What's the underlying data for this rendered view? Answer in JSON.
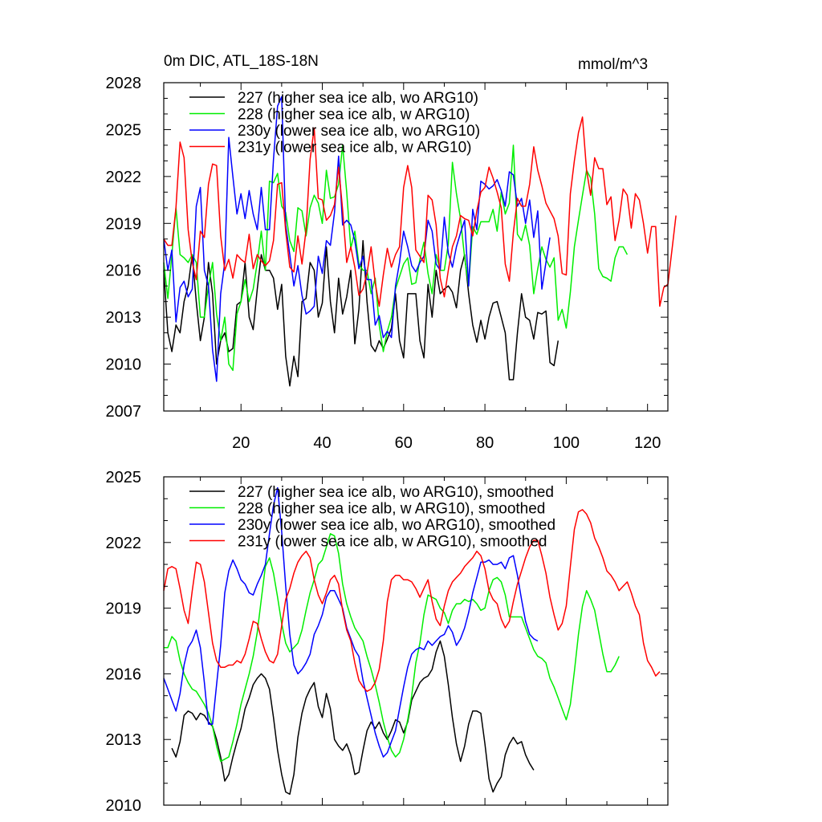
{
  "header": {
    "title": "0m DIC, ATL_18S-18N",
    "units": "mmol/m^3"
  },
  "chart_data": [
    {
      "type": "line",
      "title": "0m DIC, ATL_18S-18N",
      "units": "mmol/m^3",
      "xlim": [
        1,
        125
      ],
      "ylim": [
        2007,
        2028
      ],
      "xticks": [
        20,
        40,
        60,
        80,
        100,
        120
      ],
      "yticks": [
        2007,
        2010,
        2013,
        2016,
        2019,
        2022,
        2025,
        2028
      ],
      "legend_position": "top-left",
      "series": [
        {
          "name": "227 (higher sea ice alb, wo ARG10)",
          "color": "#000000",
          "start": 1,
          "values": [
            2016,
            2012,
            2010.8,
            2012.5,
            2012,
            2014,
            2015,
            2017,
            2014,
            2011.5,
            2013,
            2016.5,
            2014.5,
            2010,
            2011.5,
            2012,
            2010.8,
            2011,
            2013.8,
            2014,
            2016.5,
            2013,
            2012.2,
            2014.8,
            2017,
            2016,
            2016,
            2015.5,
            2013.5,
            2015.1,
            2010.5,
            2008.6,
            2010.5,
            2009.2,
            2014,
            2014.2,
            2016.5,
            2016,
            2013,
            2013.9,
            2017.5,
            2014,
            2012,
            2015.5,
            2013.2,
            2014.3,
            2016,
            2011.3,
            2013.5,
            2017.9,
            2014,
            2011.2,
            2010.8,
            2011.5,
            2011,
            2011.6,
            2012.3,
            2014.5,
            2011.5,
            2010.4,
            2014.5,
            2014.5,
            2014.5,
            2011.5,
            2010.4,
            2015.1,
            2013,
            2016,
            2014.5,
            2014.8,
            2015,
            2014.6,
            2013.6,
            2016,
            2017,
            2014.5,
            2012.5,
            2011.4,
            2012.8,
            2011.6,
            2013,
            2013.9,
            2014,
            2013,
            2012,
            2009,
            2009,
            2012,
            2014.5,
            2013,
            2012.8,
            2011.6,
            2013.3,
            2013.2,
            2013.4,
            2010.1,
            2009.9,
            2011.5
          ]
        },
        {
          "name": "228 (higher sea ice alb, w ARG10)",
          "color": "#00ee00",
          "start": 1,
          "values": [
            2016.5,
            2014.2,
            2017,
            2020,
            2017,
            2016.8,
            2016.5,
            2017,
            2016.5,
            2013,
            2013,
            2015,
            2016.5,
            2013.2,
            2011.5,
            2013,
            2010,
            2009.6,
            2013.2,
            2014,
            2015.4,
            2014,
            2014.8,
            2016.5,
            2018.5,
            2016,
            2021.7,
            2021.6,
            2022.2,
            2020.1,
            2019.7,
            2017.9,
            2017.2,
            2020,
            2019.8,
            2018.2,
            2020,
            2020.8,
            2020.3,
            2019,
            2022.4,
            2020.6,
            2020.7,
            2021.5,
            2024,
            2021,
            2017.4,
            2018.5,
            2016.4,
            2016,
            2016,
            2014.5,
            2015.5,
            2012.5,
            2010.8,
            2012.1,
            2013,
            2014.8,
            2015.6,
            2016.4,
            2016.8,
            2015.1,
            2015.2,
            2016.7,
            2017.8,
            2015.8,
            2014.5,
            2017,
            2016,
            2016,
            2017.7,
            2022.9,
            2020.9,
            2019.3,
            2016.8,
            2015,
            2018.8,
            2018.3,
            2019.1,
            2019.1,
            2019.1,
            2019.9,
            2018.5,
            2021,
            2019.6,
            2020.3,
            2024,
            2018.3,
            2017.9,
            2018.9,
            2017.6,
            2014.5,
            2016.1,
            2017.5,
            2016.7,
            2016.2,
            2016.8,
            2012.8,
            2013.5,
            2012.3,
            2014.6,
            2017.5,
            2019.2,
            2020.8,
            2022.4,
            2021.9,
            2019.6,
            2016.1,
            2015.6,
            2015.5,
            2015.3,
            2016.8,
            2017.5,
            2017.5,
            2017
          ]
        },
        {
          "name": "230y (lower sea ice alb, wo ARG10)",
          "color": "#0000ff",
          "start": 1,
          "values": [
            2018,
            2016,
            2017.3,
            2012.7,
            2014.9,
            2015.3,
            2014.3,
            2014.8,
            2020.1,
            2021.3,
            2016,
            2015,
            2010.9,
            2008.9,
            2014.5,
            2016.5,
            2024.5,
            2022,
            2019.6,
            2020.9,
            2019.3,
            2021.1,
            2019.6,
            2018.6,
            2021.3,
            2018.6,
            2018.6,
            2023.1,
            2026.5,
            2027.1,
            2018.9,
            2017,
            2015,
            2016.3,
            2014.4,
            2013.2,
            2013.4,
            2013.7,
            2016.9,
            2015.8,
            2017.9,
            2017.6,
            2019.7,
            2023.3,
            2018.9,
            2019.2,
            2018.9,
            2017.9,
            2016.1,
            2016.9,
            2015.4,
            2015.4,
            2012.5,
            2013.1,
            2011.7,
            2012.1,
            2011.7,
            2015,
            2016.5,
            2018.5,
            2017.5,
            2016.3,
            2015.9,
            2016.5,
            2016.9,
            2019.2,
            2018.5,
            2016.4,
            2016,
            2019.4,
            2017.1,
            2016.2,
            2017.5,
            2018.4,
            2019.2,
            2015,
            2019.9,
            2018.6,
            2021.7,
            2021.5,
            2021.2,
            2021.4,
            2021.8,
            2021.1,
            2020.1,
            2022.3,
            2022.1,
            2020.1,
            2020.6,
            2019,
            2020.5,
            2018.1,
            2019.8,
            2014.8,
            2016.5,
            2018.1
          ]
        },
        {
          "name": "231y (lower sea ice alb, w ARG10)",
          "color": "#ff0000",
          "start": 1,
          "values": [
            2018,
            2017.6,
            2017.6,
            2020,
            2024.2,
            2023.2,
            2018.6,
            2016.5,
            2015.4,
            2018.5,
            2018.1,
            2021.5,
            2022.8,
            2022.7,
            2018.2,
            2016,
            2016.7,
            2015.5,
            2017,
            2016.7,
            2016.5,
            2018.3,
            2016.1,
            2017,
            2016.6,
            2016.3,
            2016.6,
            2017.9,
            2021.5,
            2021.6,
            2018.5,
            2016.2,
            2015.9,
            2018.2,
            2016.4,
            2018.6,
            2023.1,
            2025.1,
            2020.6,
            2020.5,
            2019.2,
            2019.5,
            2020.2,
            2022.6,
            2019.9,
            2016.5,
            2017.5,
            2016.2,
            2014.4,
            2014.8,
            2015.8,
            2017.5,
            2015.2,
            2013.7,
            2015.7,
            2017.4,
            2016.2,
            2017,
            2017.5,
            2021.3,
            2022.7,
            2021.3,
            2017.3,
            2016.9,
            2016.5,
            2020.8,
            2020.5,
            2018.9,
            2015.5,
            2014.3,
            2016,
            2017.5,
            2018.2,
            2019.5,
            2019.3,
            2019.2,
            2018.2,
            2019.8,
            2021,
            2021.3,
            2022.6,
            2021.9,
            2021,
            2020,
            2016.4,
            2015.3,
            2018.4,
            2020.6,
            2020.1,
            2020.1,
            2021.5,
            2023.9,
            2022.4,
            2021.4,
            2020.3,
            2019.8,
            2019.3,
            2018.2,
            2015.8,
            2015.7,
            2020.9,
            2023,
            2024.8,
            2025.8,
            2022.4,
            2020.8,
            2023.2,
            2022.5,
            2022.5,
            2020.2,
            2020.7,
            2017.9,
            2019.2,
            2021.2,
            2020.8,
            2018.7,
            2020.9,
            2020.5,
            2019,
            2017.1,
            2018.8,
            2018.8,
            2013.7,
            2014.9,
            2015.1,
            2017.3,
            2019.5
          ]
        }
      ]
    },
    {
      "type": "line",
      "xlim": [
        1,
        125
      ],
      "ylim": [
        2010,
        2025
      ],
      "xticks": [
        20,
        40,
        60,
        80,
        100,
        120
      ],
      "yticks": [
        2010,
        2013,
        2016,
        2019,
        2022,
        2025
      ],
      "legend_position": "top-left",
      "series": [
        {
          "name": "227 (higher sea ice alb, wo ARG10), smoothed",
          "color": "#000000",
          "start": 3,
          "values": [
            2012.6,
            2012.2,
            2012.9,
            2014.1,
            2014.3,
            2014.2,
            2013.9,
            2014.2,
            2014.1,
            2013.8,
            2013.6,
            2013,
            2012.2,
            2011.1,
            2011.4,
            2012.2,
            2012.9,
            2013.5,
            2014.4,
            2014.9,
            2015.5,
            2015.8,
            2016,
            2015.8,
            2015.3,
            2014,
            2012.5,
            2011.4,
            2010.6,
            2010.5,
            2011.4,
            2013.1,
            2014.2,
            2014.9,
            2015.3,
            2015.6,
            2014.5,
            2014,
            2015.1,
            2014.4,
            2013,
            2012.7,
            2012.5,
            2012.8,
            2012.3,
            2011.4,
            2011.5,
            2012.5,
            2013.4,
            2013.8,
            2013.5,
            2013.8,
            2013.3,
            2013,
            2013.4,
            2013.9,
            2013.8,
            2013.3,
            2013.8,
            2014.8,
            2015.2,
            2015.6,
            2015.8,
            2015.9,
            2016.2,
            2017,
            2017.5,
            2016.8,
            2015.5,
            2014,
            2012.8,
            2012,
            2012.7,
            2013.7,
            2014.3,
            2014.3,
            2014.2,
            2012.8,
            2011.2,
            2010.6,
            2011,
            2011.3,
            2012.3,
            2012.8,
            2013.1,
            2012.8,
            2012.9,
            2012.3,
            2011.9,
            2011.6
          ]
        },
        {
          "name": "228 (higher sea ice alb, w ARG10), smoothed",
          "color": "#00ee00",
          "start": 1,
          "values": [
            2017.2,
            2017.2,
            2017.7,
            2017.5,
            2016.6,
            2016,
            2015.6,
            2015.3,
            2015.2,
            2014.9,
            2014.6,
            2014.2,
            2013.6,
            2012.7,
            2012,
            2012.1,
            2012.2,
            2012.9,
            2013.7,
            2014.6,
            2015.3,
            2016,
            2016.8,
            2017.9,
            2019.4,
            2020.9,
            2021.3,
            2020.6,
            2019.5,
            2018.3,
            2017.4,
            2017,
            2017.2,
            2017.4,
            2018,
            2018.9,
            2019.7,
            2020.3,
            2021,
            2021.2,
            2021.8,
            2022.4,
            2022.3,
            2021.5,
            2020.1,
            2019.2,
            2018.6,
            2018.1,
            2017.8,
            2017.5,
            2016.8,
            2016.2,
            2015.5,
            2014.7,
            2013.8,
            2013.1,
            2012.5,
            2012.2,
            2012.4,
            2013,
            2013.9,
            2015,
            2016.5,
            2017.4,
            2018.7,
            2019.6,
            2019.5,
            2019.4,
            2019,
            2018.8,
            2018.3,
            2018.9,
            2019.2,
            2019.2,
            2019.4,
            2019.3,
            2019.4,
            2019.2,
            2018.9,
            2019,
            2019.8,
            2020.3,
            2020.4,
            2020.2,
            2019.6,
            2018.6,
            2018.6,
            2018.6,
            2018.6,
            2018.1,
            2017.6,
            2017.1,
            2016.8,
            2016.7,
            2016.5,
            2015.8,
            2015.4,
            2014.9,
            2014.4,
            2013.9,
            2014.6,
            2016.1,
            2017.8,
            2019.1,
            2019.8,
            2019.4,
            2018.9,
            2017.9,
            2016.9,
            2016.1,
            2016.1,
            2016.4,
            2016.8
          ]
        },
        {
          "name": "230y (lower sea ice alb, wo ARG10), smoothed",
          "color": "#0000ff",
          "start": 1,
          "values": [
            2015.8,
            2015.3,
            2014.8,
            2014.3,
            2015.1,
            2016.4,
            2017.2,
            2017.5,
            2018,
            2017.2,
            2015.6,
            2013.7,
            2013.7,
            2015.5,
            2017.3,
            2019.7,
            2020.7,
            2021.2,
            2020.8,
            2020.3,
            2020.1,
            2019.7,
            2019.6,
            2020.1,
            2020.5,
            2021,
            2022.4,
            2023.7,
            2024.5,
            2022.5,
            2020,
            2017.8,
            2016.4,
            2016,
            2016.2,
            2016.5,
            2016.9,
            2017.8,
            2018.2,
            2018.7,
            2019.5,
            2019.8,
            2019.8,
            2019.4,
            2019,
            2018.1,
            2017.6,
            2017.1,
            2016.8,
            2015.7,
            2014.9,
            2014.1,
            2013.3,
            2012.7,
            2012.2,
            2012.4,
            2012.9,
            2013.4,
            2014.4,
            2015.4,
            2016.3,
            2016.9,
            2017.1,
            2017.2,
            2017.1,
            2017.5,
            2017.3,
            2017.5,
            2017.7,
            2017.8,
            2018.2,
            2017.9,
            2017.3,
            2017.6,
            2018.1,
            2018.8,
            2019.7,
            2020.4,
            2021.1,
            2021.1,
            2021.2,
            2021,
            2021,
            2021.1,
            2020.8,
            2021.3,
            2021.4,
            2020.5,
            2019.4,
            2018.4,
            2017.8,
            2017.6,
            2017.5
          ]
        },
        {
          "name": "231y (lower sea ice alb, w ARG10), smoothed",
          "color": "#ff0000",
          "start": 1,
          "values": [
            2019.8,
            2020.8,
            2020.9,
            2020.8,
            2019.9,
            2018.9,
            2018.3,
            2019.8,
            2021.1,
            2021,
            2020.2,
            2018.8,
            2017.4,
            2016.6,
            2016.3,
            2016.3,
            2016.4,
            2016.4,
            2016.6,
            2016.5,
            2016.9,
            2017.6,
            2018.4,
            2018.3,
            2017.6,
            2017,
            2016.6,
            2016.5,
            2016.9,
            2018.2,
            2019.4,
            2019.9,
            2020.6,
            2021.1,
            2021.4,
            2021.6,
            2021.3,
            2020.3,
            2019.6,
            2019.2,
            2019.7,
            2020.3,
            2020.5,
            2020.1,
            2018.9,
            2018,
            2017.5,
            2016.5,
            2015.7,
            2015.4,
            2015.2,
            2015.3,
            2015.6,
            2016.2,
            2017.5,
            2019.3,
            2020.3,
            2020.5,
            2020.5,
            2020.3,
            2020.3,
            2020.2,
            2019.9,
            2019.5,
            2019.9,
            2020.3,
            2019.3,
            2018.5,
            2018.2,
            2019.1,
            2019.8,
            2020.2,
            2020.4,
            2020.6,
            2020.9,
            2021.1,
            2021.3,
            2021.6,
            2021.4,
            2020.8,
            2019.8,
            2019.4,
            2019.2,
            2018.5,
            2018.1,
            2018.4,
            2019.3,
            2020.1,
            2020.7,
            2021.3,
            2021.8,
            2022.1,
            2022.1,
            2021.4,
            2020.6,
            2019.5,
            2018.7,
            2018,
            2018.3,
            2019.1,
            2020.9,
            2022.6,
            2023.4,
            2023.5,
            2023.3,
            2022.9,
            2022.2,
            2021.8,
            2021.3,
            2020.7,
            2020.5,
            2020.2,
            2019.8,
            2020,
            2020.2,
            2019.7,
            2019.1,
            2018.7,
            2017.4,
            2016.6,
            2016.3,
            2015.9,
            2016.1
          ]
        }
      ]
    }
  ]
}
